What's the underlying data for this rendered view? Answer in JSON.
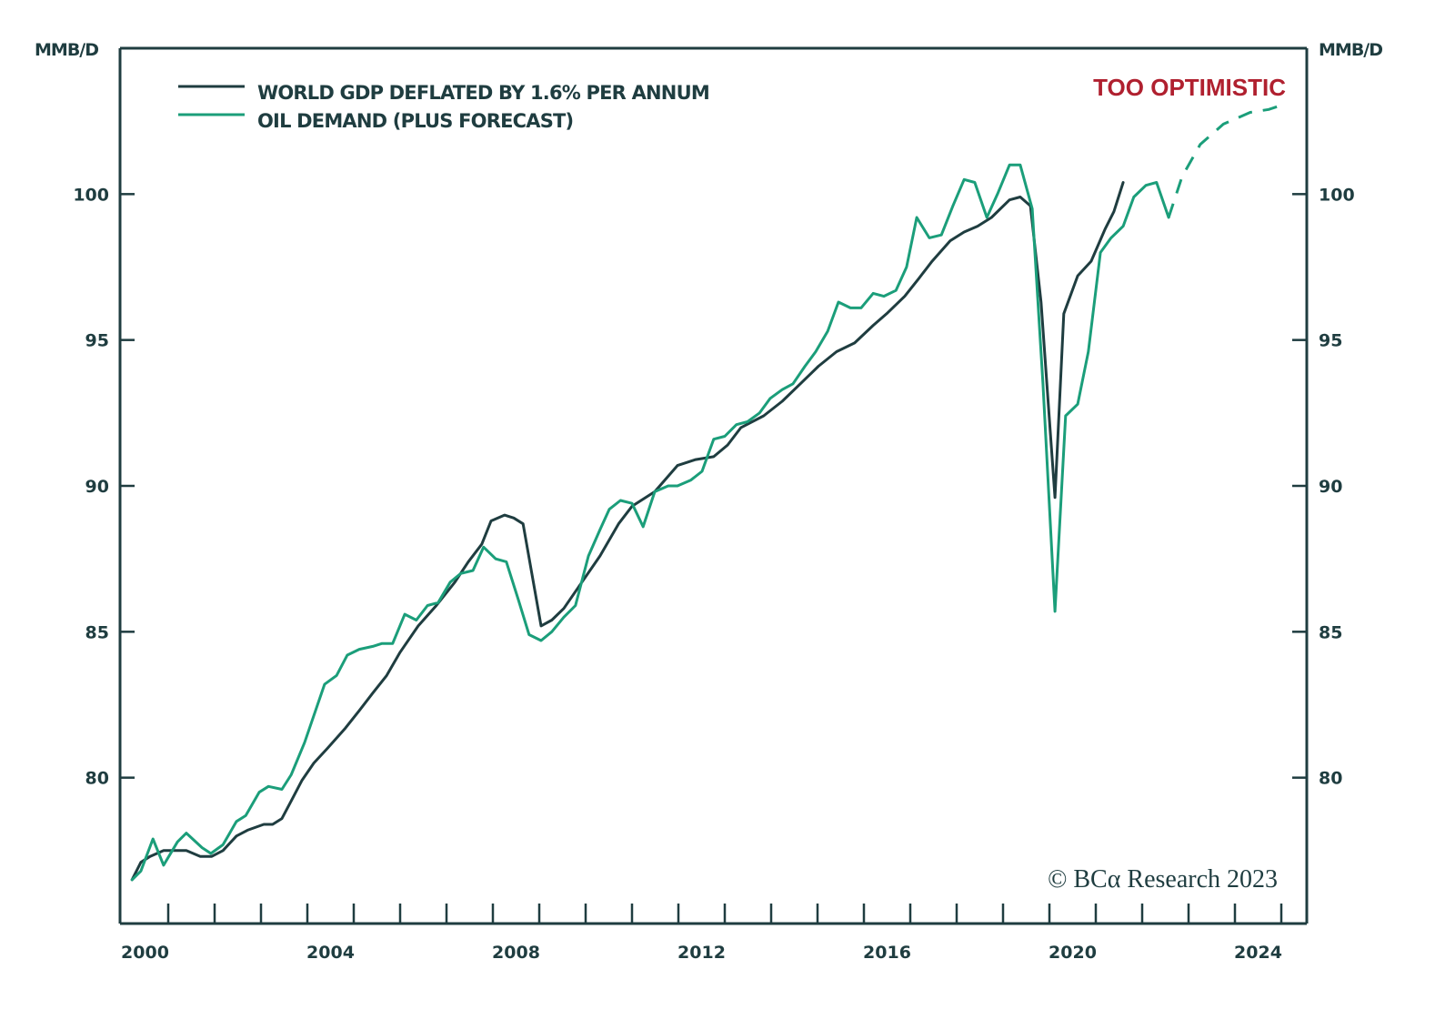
{
  "chart_data": {
    "type": "line",
    "title": "",
    "xlabel": "",
    "ylabel": "MMB/D",
    "ylabel_right": "MMB/D",
    "xlim": [
      2000,
      2025.5
    ],
    "ylim": [
      75,
      105
    ],
    "x_ticks": [
      "2000",
      "2004",
      "2008",
      "2012",
      "2016",
      "2020",
      "2024"
    ],
    "x_tick_years": [
      2000,
      2004,
      2008,
      2012,
      2016,
      2020,
      2024
    ],
    "y_ticks": [
      80,
      85,
      90,
      95,
      100
    ],
    "y_tick_labels": [
      "80",
      "85",
      "90",
      "95",
      "100"
    ],
    "grid": false,
    "legend_position": "top-left",
    "annotations": [
      {
        "text": "TOO OPTIMISTIC",
        "color": "#b0202f"
      },
      {
        "text": "© BCA Research 2023"
      }
    ],
    "series": [
      {
        "name": "WORLD GDP DEFLATED BY 1.6% PER ANNUM",
        "color": "#1f3d40",
        "style": "solid",
        "points": [
          [
            2000.22,
            76.5
          ],
          [
            2000.41,
            77.1
          ],
          [
            2000.61,
            77.3
          ],
          [
            2000.9,
            77.5
          ],
          [
            2001.39,
            77.5
          ],
          [
            2001.69,
            77.3
          ],
          [
            2001.94,
            77.3
          ],
          [
            2002.18,
            77.5
          ],
          [
            2002.47,
            78.0
          ],
          [
            2002.71,
            78.2
          ],
          [
            2003.06,
            78.4
          ],
          [
            2003.25,
            78.4
          ],
          [
            2003.45,
            78.6
          ],
          [
            2003.65,
            79.2
          ],
          [
            2003.88,
            79.9
          ],
          [
            2004.14,
            80.5
          ],
          [
            2004.43,
            81.0
          ],
          [
            2004.82,
            81.7
          ],
          [
            2005.12,
            82.3
          ],
          [
            2005.41,
            82.9
          ],
          [
            2005.71,
            83.5
          ],
          [
            2006.0,
            84.3
          ],
          [
            2006.39,
            85.2
          ],
          [
            2006.78,
            85.9
          ],
          [
            2007.18,
            86.7
          ],
          [
            2007.47,
            87.4
          ],
          [
            2007.76,
            88.0
          ],
          [
            2007.96,
            88.8
          ],
          [
            2008.25,
            89.0
          ],
          [
            2008.45,
            88.9
          ],
          [
            2008.65,
            88.7
          ],
          [
            2009.04,
            85.2
          ],
          [
            2009.27,
            85.4
          ],
          [
            2009.53,
            85.8
          ],
          [
            2009.92,
            86.7
          ],
          [
            2010.31,
            87.6
          ],
          [
            2010.71,
            88.7
          ],
          [
            2011.0,
            89.3
          ],
          [
            2011.49,
            89.8
          ],
          [
            2011.98,
            90.7
          ],
          [
            2012.37,
            90.9
          ],
          [
            2012.76,
            91.0
          ],
          [
            2013.06,
            91.4
          ],
          [
            2013.35,
            92.0
          ],
          [
            2013.84,
            92.4
          ],
          [
            2014.24,
            92.9
          ],
          [
            2014.63,
            93.5
          ],
          [
            2015.02,
            94.1
          ],
          [
            2015.41,
            94.6
          ],
          [
            2015.8,
            94.9
          ],
          [
            2016.2,
            95.5
          ],
          [
            2016.49,
            95.9
          ],
          [
            2016.88,
            96.5
          ],
          [
            2017.18,
            97.1
          ],
          [
            2017.47,
            97.7
          ],
          [
            2017.86,
            98.4
          ],
          [
            2018.16,
            98.7
          ],
          [
            2018.45,
            98.9
          ],
          [
            2018.75,
            99.2
          ],
          [
            2019.14,
            99.8
          ],
          [
            2019.37,
            99.9
          ],
          [
            2019.59,
            99.6
          ],
          [
            2019.82,
            96.3
          ],
          [
            2020.12,
            89.6
          ],
          [
            2020.31,
            95.9
          ],
          [
            2020.61,
            97.2
          ],
          [
            2020.9,
            97.7
          ],
          [
            2021.2,
            98.8
          ],
          [
            2021.39,
            99.4
          ],
          [
            2021.59,
            100.4
          ]
        ]
      },
      {
        "name": "OIL DEMAND (PLUS FORECAST)",
        "color": "#1b9e7a",
        "style": "solid",
        "points": [
          [
            2000.22,
            76.5
          ],
          [
            2000.41,
            76.8
          ],
          [
            2000.67,
            77.9
          ],
          [
            2000.9,
            77.0
          ],
          [
            2001.2,
            77.8
          ],
          [
            2001.39,
            78.1
          ],
          [
            2001.73,
            77.6
          ],
          [
            2001.92,
            77.4
          ],
          [
            2002.18,
            77.7
          ],
          [
            2002.47,
            78.5
          ],
          [
            2002.67,
            78.7
          ],
          [
            2002.96,
            79.5
          ],
          [
            2003.16,
            79.7
          ],
          [
            2003.45,
            79.6
          ],
          [
            2003.65,
            80.1
          ],
          [
            2003.94,
            81.2
          ],
          [
            2004.37,
            83.2
          ],
          [
            2004.63,
            83.5
          ],
          [
            2004.86,
            84.2
          ],
          [
            2005.12,
            84.4
          ],
          [
            2005.41,
            84.5
          ],
          [
            2005.61,
            84.6
          ],
          [
            2005.84,
            84.6
          ],
          [
            2006.1,
            85.6
          ],
          [
            2006.35,
            85.4
          ],
          [
            2006.59,
            85.9
          ],
          [
            2006.82,
            86.0
          ],
          [
            2007.08,
            86.7
          ],
          [
            2007.31,
            87.0
          ],
          [
            2007.57,
            87.1
          ],
          [
            2007.8,
            87.9
          ],
          [
            2008.06,
            87.5
          ],
          [
            2008.29,
            87.4
          ],
          [
            2008.55,
            86.1
          ],
          [
            2008.78,
            84.9
          ],
          [
            2009.04,
            84.7
          ],
          [
            2009.27,
            85.0
          ],
          [
            2009.53,
            85.5
          ],
          [
            2009.78,
            85.9
          ],
          [
            2010.06,
            87.6
          ],
          [
            2010.31,
            88.5
          ],
          [
            2010.51,
            89.2
          ],
          [
            2010.75,
            89.5
          ],
          [
            2011.0,
            89.4
          ],
          [
            2011.24,
            88.6
          ],
          [
            2011.49,
            89.8
          ],
          [
            2011.78,
            90.0
          ],
          [
            2011.98,
            90.0
          ],
          [
            2012.27,
            90.2
          ],
          [
            2012.51,
            90.5
          ],
          [
            2012.76,
            91.6
          ],
          [
            2013.0,
            91.7
          ],
          [
            2013.25,
            92.1
          ],
          [
            2013.49,
            92.2
          ],
          [
            2013.75,
            92.5
          ],
          [
            2013.98,
            93.0
          ],
          [
            2014.24,
            93.3
          ],
          [
            2014.47,
            93.5
          ],
          [
            2014.73,
            94.1
          ],
          [
            2014.96,
            94.6
          ],
          [
            2015.22,
            95.3
          ],
          [
            2015.45,
            96.3
          ],
          [
            2015.71,
            96.1
          ],
          [
            2015.94,
            96.1
          ],
          [
            2016.2,
            96.6
          ],
          [
            2016.43,
            96.5
          ],
          [
            2016.69,
            96.7
          ],
          [
            2016.92,
            97.5
          ],
          [
            2017.14,
            99.2
          ],
          [
            2017.41,
            98.5
          ],
          [
            2017.67,
            98.6
          ],
          [
            2017.92,
            99.6
          ],
          [
            2018.16,
            100.5
          ],
          [
            2018.39,
            100.4
          ],
          [
            2018.65,
            99.2
          ],
          [
            2018.88,
            100.0
          ],
          [
            2019.14,
            101.0
          ],
          [
            2019.37,
            101.0
          ],
          [
            2019.63,
            99.5
          ],
          [
            2019.86,
            93.5
          ],
          [
            2020.12,
            85.7
          ],
          [
            2020.35,
            92.4
          ],
          [
            2020.61,
            92.8
          ],
          [
            2020.84,
            94.6
          ],
          [
            2021.1,
            98.0
          ],
          [
            2021.33,
            98.5
          ],
          [
            2021.59,
            98.9
          ],
          [
            2021.82,
            99.9
          ],
          [
            2022.08,
            100.3
          ],
          [
            2022.31,
            100.4
          ],
          [
            2022.57,
            99.2
          ]
        ]
      },
      {
        "name": "OIL DEMAND FORECAST",
        "color": "#1b9e7a",
        "style": "dashed",
        "points": [
          [
            2022.57,
            99.2
          ],
          [
            2022.86,
            100.6
          ],
          [
            2023.25,
            101.7
          ],
          [
            2023.75,
            102.4
          ],
          [
            2024.33,
            102.8
          ],
          [
            2024.73,
            102.9
          ],
          [
            2025.1,
            103.1
          ]
        ]
      }
    ]
  },
  "labels": {
    "unit_left": "MMB/D",
    "unit_right": "MMB/D",
    "annotation": "TOO OPTIMISTIC",
    "copyright": "© BCα Research 2023",
    "legend": [
      "WORLD GDP DEFLATED BY 1.6% PER ANNUM",
      "OIL DEMAND (PLUS FORECAST)"
    ]
  }
}
